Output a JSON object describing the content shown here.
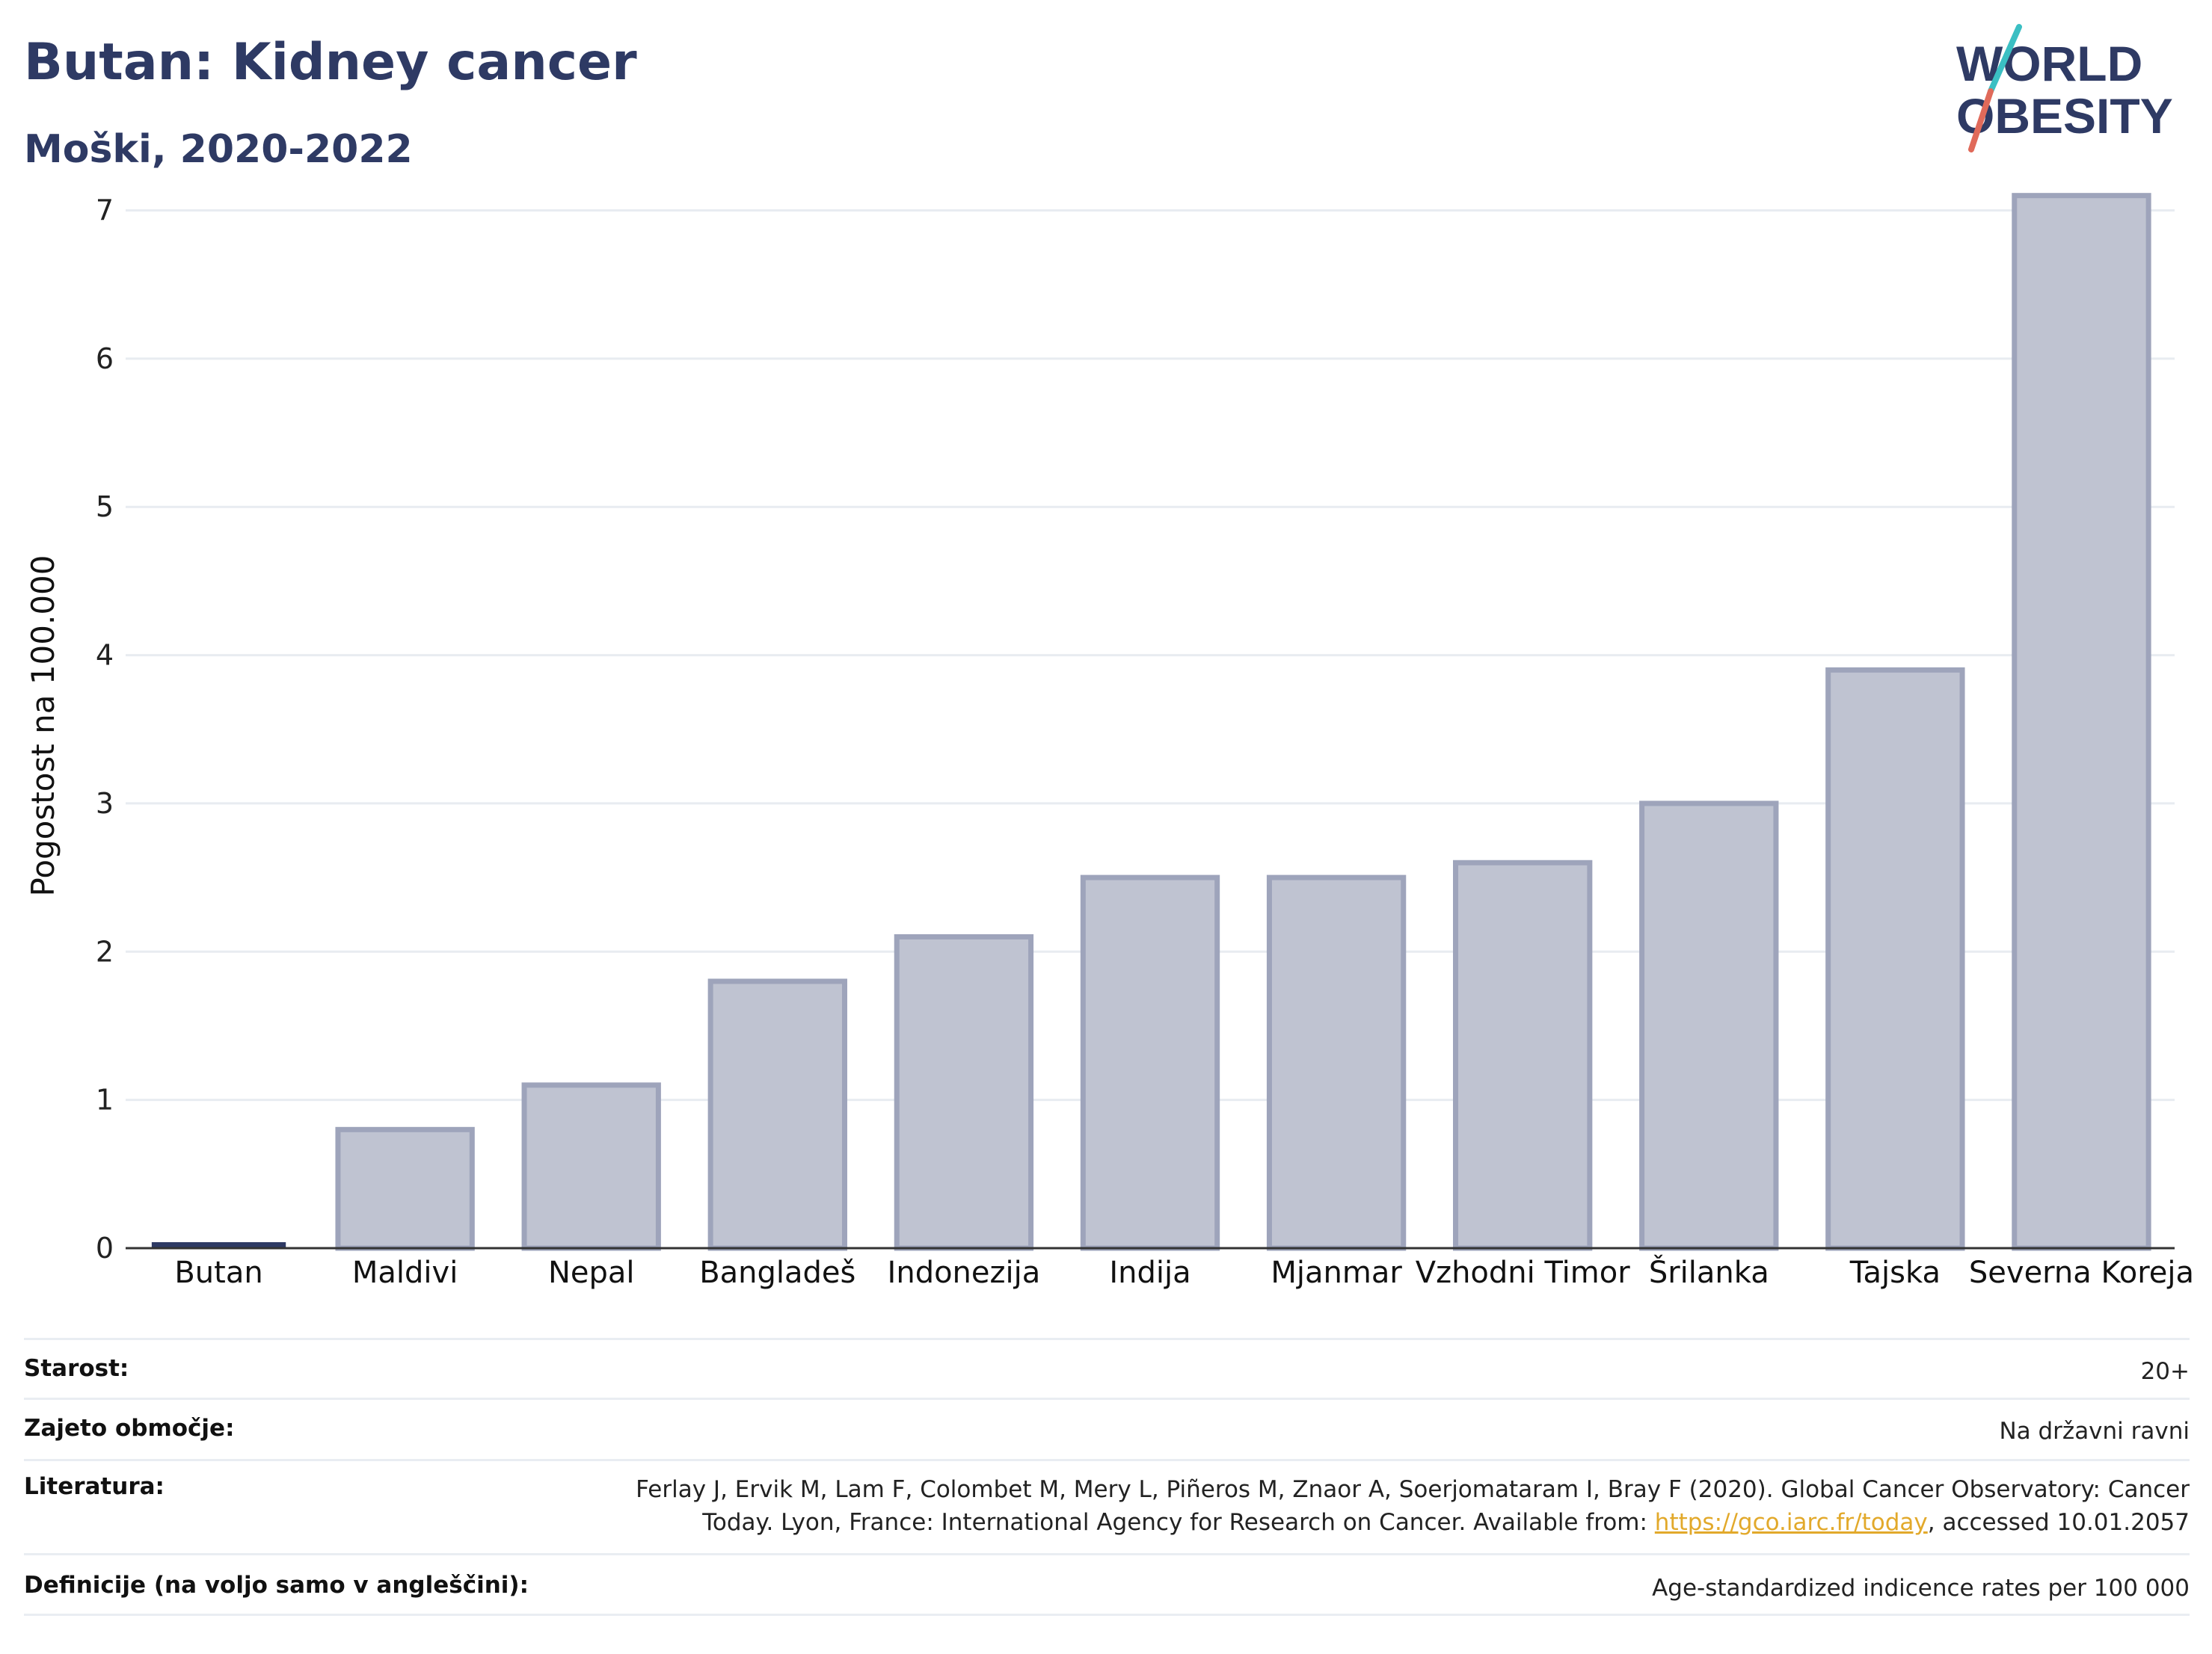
{
  "header": {
    "title": "Butan: Kidney cancer",
    "subtitle": "Moški, 2020-2022"
  },
  "logo": {
    "line1": "WORLD",
    "line2": "OBESITY",
    "text_color": "#2e3a64",
    "slash_top_color": "#3bbfc3",
    "slash_bottom_color": "#e06a5a"
  },
  "chart_data": {
    "type": "bar",
    "categories": [
      "Butan",
      "Maldivi",
      "Nepal",
      "Bangladeš",
      "Indonezija",
      "Indija",
      "Mjanmar",
      "Vzhodni Timor",
      "Šrilanka",
      "Tajska",
      "Severna Koreja"
    ],
    "values": [
      0.02,
      0.8,
      1.1,
      1.8,
      2.1,
      2.5,
      2.5,
      2.6,
      3.0,
      3.9,
      7.1
    ],
    "highlight_category": "Butan",
    "ylabel": "Pogostost na 100.000",
    "xlabel": "",
    "ylim": [
      0,
      7.3
    ],
    "yticks": [
      0,
      1,
      2,
      3,
      4,
      5,
      6,
      7
    ],
    "grid": true,
    "legend": "none",
    "colors": {
      "bar_fill": "#bfc3d1",
      "bar_stroke": "#9ea4bb",
      "highlight": "#2e3a64",
      "grid": "#e8ecf1",
      "axis": "#333333"
    }
  },
  "info": {
    "age_label": "Starost:",
    "age_value": "20+",
    "coverage_label": "Zajeto območje:",
    "coverage_value": "Na državni ravni",
    "ref_label": "Literatura:",
    "ref_line1": "Ferlay J, Ervik M, Lam F, Colombet M, Mery L, Piñeros M, Znaor A, Soerjomataram I, Bray F (2020). Global Cancer Observatory: Cancer",
    "ref_line2_pre": "Today. Lyon, France: International Agency for Research on Cancer. Available from: ",
    "ref_link": "https://gco.iarc.fr/today",
    "ref_line2_post": ", accessed 10.01.2057",
    "def_label": "Definicije (na voljo samo v angleščini):",
    "def_value": "Age-standardized indicence rates per 100 000"
  }
}
